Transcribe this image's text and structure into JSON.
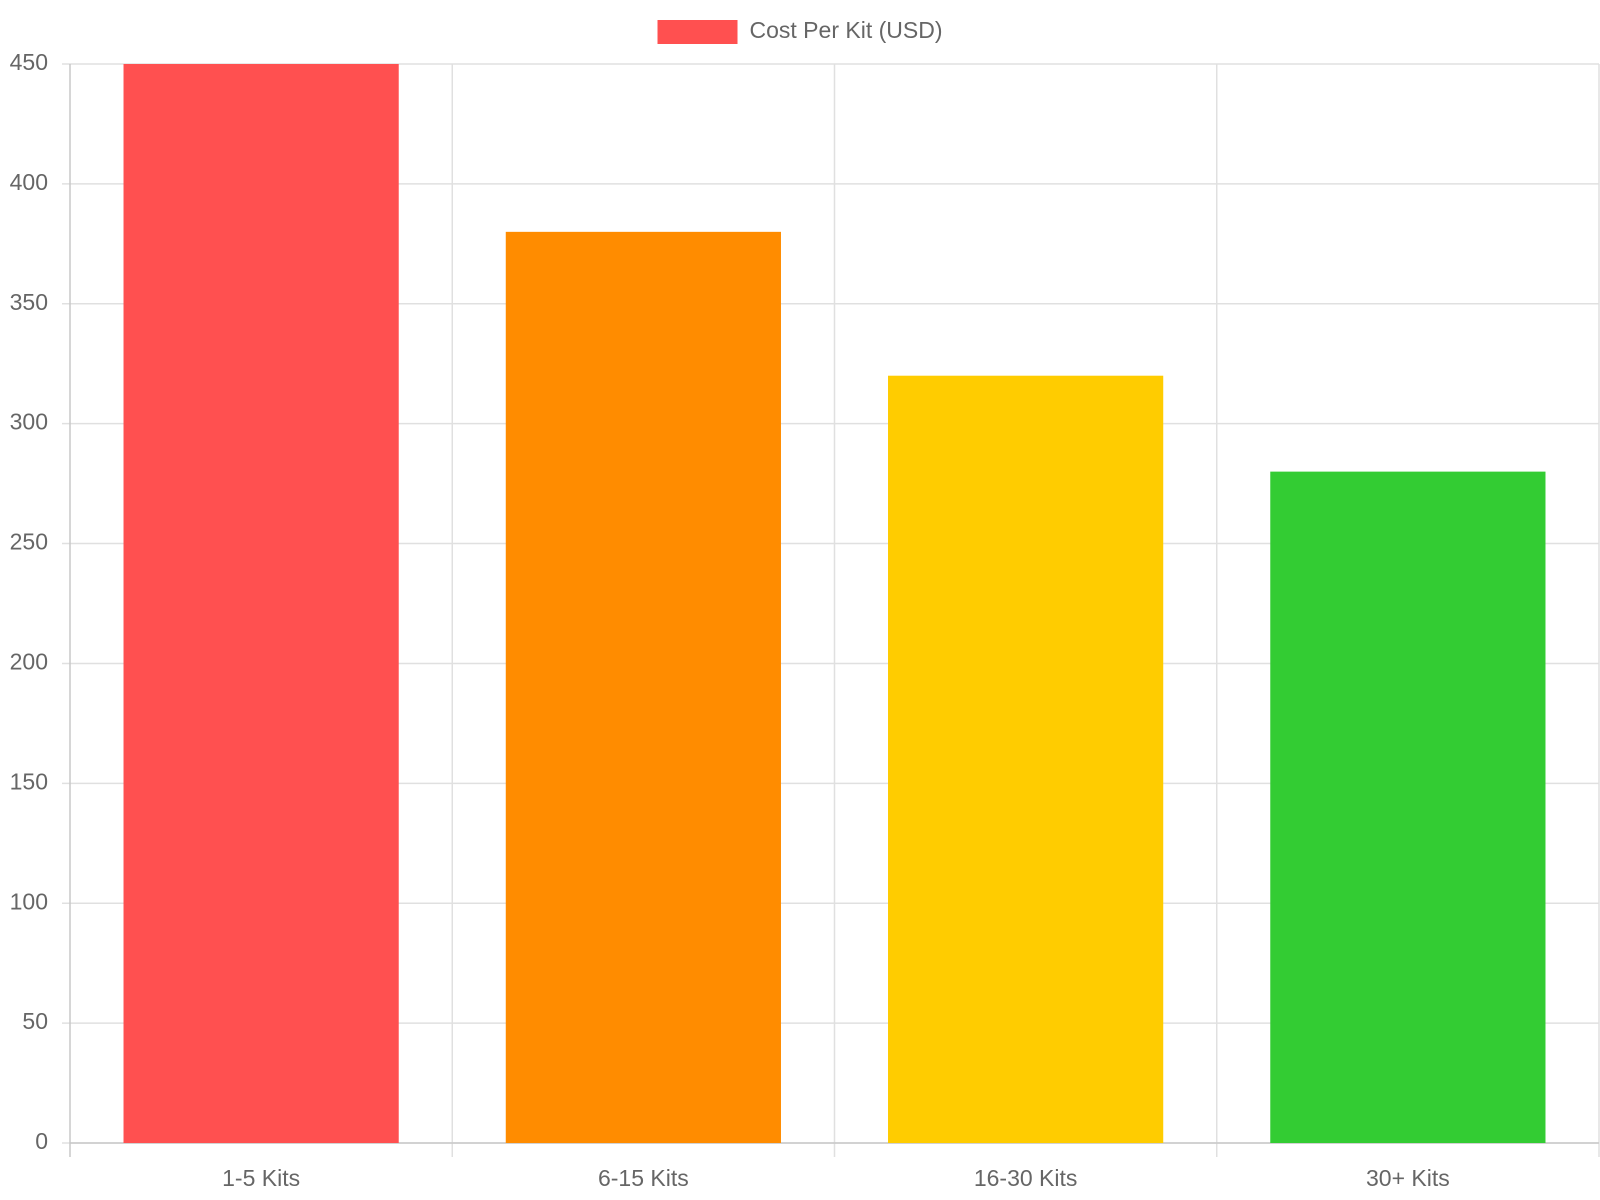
{
  "chart_data": {
    "type": "bar",
    "categories": [
      "1-5 Kits",
      "6-15 Kits",
      "16-30 Kits",
      "30+ Kits"
    ],
    "series": [
      {
        "name": "Cost Per Kit (USD)",
        "color": "#ff5050",
        "colors": [
          "#ff5050",
          "#ff8c00",
          "#ffcc00",
          "#33cc33"
        ],
        "values": [
          450,
          380,
          320,
          280
        ]
      }
    ],
    "ylim": [
      0,
      450
    ],
    "yticks": [
      0,
      50,
      100,
      150,
      200,
      250,
      300,
      350,
      400,
      450
    ],
    "grid": true,
    "legend": "top"
  }
}
